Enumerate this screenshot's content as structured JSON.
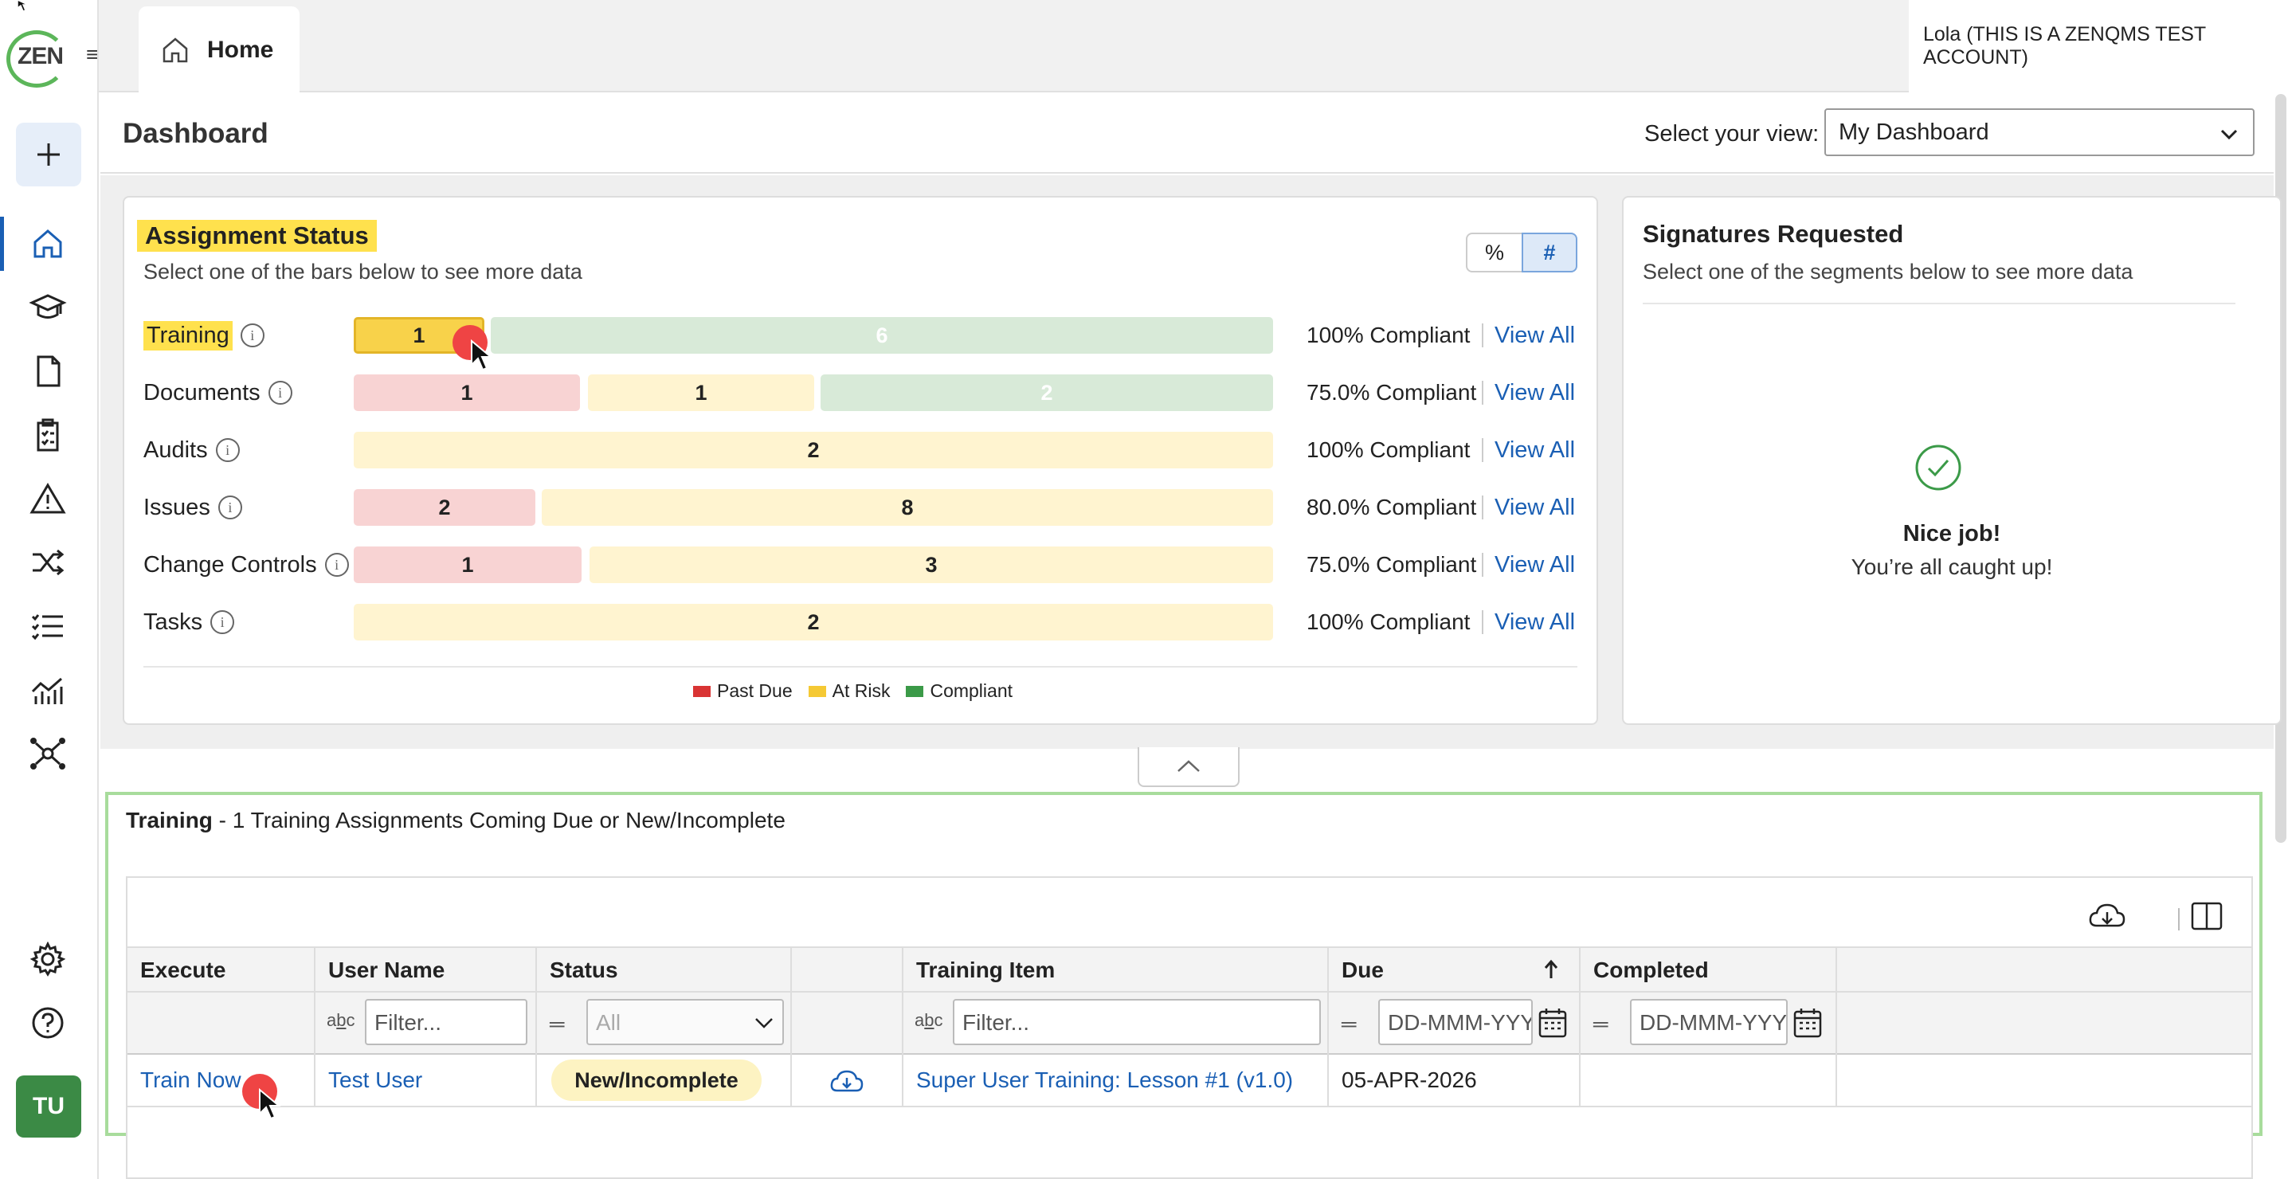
{
  "app": {
    "logo_text": "ZEN",
    "home_tab": "Home",
    "account": "Lola (THIS IS A ZENQMS TEST ACCOUNT)",
    "avatar_initials": "TU"
  },
  "dashboard": {
    "title": "Dashboard",
    "view_label": "Select your view:",
    "view_value": "My Dashboard"
  },
  "assignment_status": {
    "title": "Assignment Status",
    "subtitle": "Select one of the bars below to see more data",
    "toggle_pct": "%",
    "toggle_num": "#",
    "view_all": "View All",
    "rows": [
      {
        "label": "Training",
        "past_due": null,
        "at_risk": 1,
        "compliant": 6,
        "compliance": "100% Compliant"
      },
      {
        "label": "Documents",
        "past_due": 1,
        "at_risk": 1,
        "compliant": 2,
        "compliance": "75.0% Compliant"
      },
      {
        "label": "Audits",
        "past_due": null,
        "at_risk": 2,
        "compliant": null,
        "compliance": "100% Compliant"
      },
      {
        "label": "Issues",
        "past_due": 2,
        "at_risk": 8,
        "compliant": null,
        "compliance": "80.0% Compliant"
      },
      {
        "label": "Change Controls",
        "past_due": 1,
        "at_risk": 3,
        "compliant": null,
        "compliance": "75.0% Compliant"
      },
      {
        "label": "Tasks",
        "past_due": null,
        "at_risk": 2,
        "compliant": null,
        "compliance": "100% Compliant"
      }
    ],
    "legend": [
      {
        "label": "Past Due",
        "color": "#d93434"
      },
      {
        "label": "At Risk",
        "color": "#f5c934"
      },
      {
        "label": "Compliant",
        "color": "#3b9a48"
      }
    ]
  },
  "signatures": {
    "title": "Signatures Requested",
    "subtitle": "Select one of the segments below to see more data",
    "nice": "Nice job!",
    "caught_up": "You’re all caught up!"
  },
  "training": {
    "heading_bold": "Training",
    "heading_rest": " - 1 Training Assignments Coming Due or New/Incomplete",
    "columns": [
      "Execute",
      "User Name",
      "Status",
      "",
      "Training Item",
      "Due",
      "Completed"
    ],
    "filters": {
      "user_name": "Filter...",
      "status": "All",
      "training_item": "Filter...",
      "due": "DD-MMM-YYY",
      "completed": "DD-MMM-YYY"
    },
    "rows": [
      {
        "execute": "Train Now",
        "user": "Test User",
        "status": "New/Incomplete",
        "item": "Super User Training: Lesson #1 (v1.0)",
        "due": "05-APR-2026",
        "completed": ""
      }
    ]
  }
}
